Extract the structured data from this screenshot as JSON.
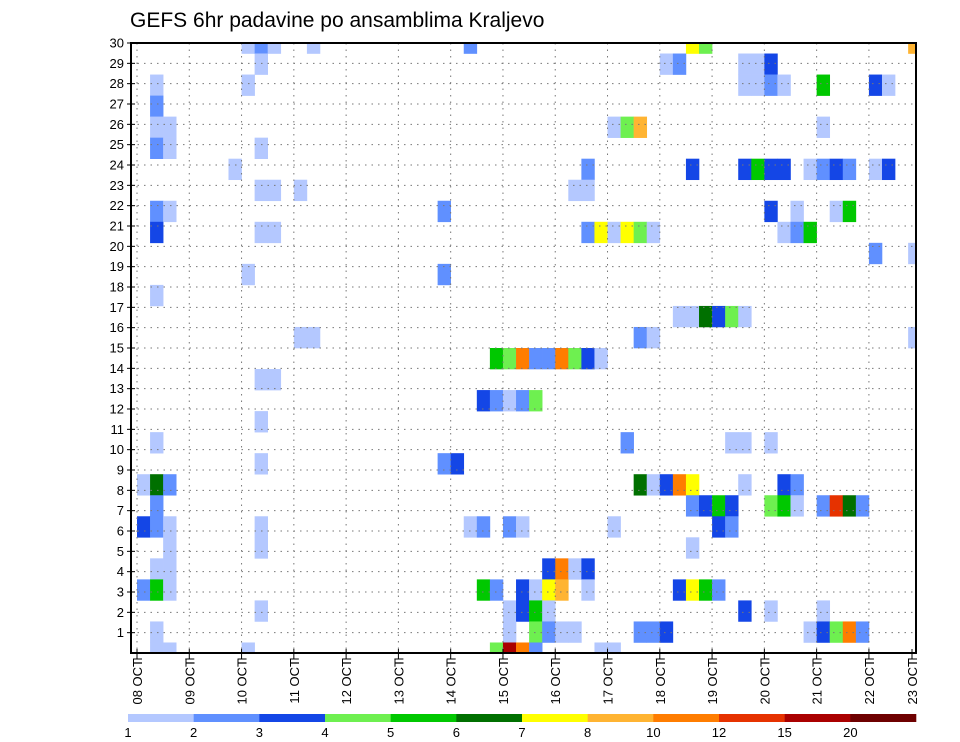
{
  "chart_data": {
    "type": "heatmap",
    "title": "GEFS 6hr padavine po ansamblima Kraljevo",
    "xlabel": "",
    "ylabel": "",
    "x_tick_labels": [
      "08 OCT",
      "09 OCT",
      "10 OCT",
      "11 OCT",
      "12 OCT",
      "13 OCT",
      "14 OCT",
      "15 OCT",
      "16 OCT",
      "17 OCT",
      "18 OCT",
      "19 OCT",
      "20 OCT",
      "21 OCT",
      "22 OCT",
      "23 OCT"
    ],
    "y_tick_labels": [
      "1",
      "2",
      "3",
      "4",
      "5",
      "6",
      "7",
      "8",
      "9",
      "10",
      "11",
      "12",
      "13",
      "14",
      "15",
      "16",
      "17",
      "18",
      "19",
      "20",
      "21",
      "22",
      "23",
      "24",
      "25",
      "26",
      "27",
      "28",
      "29",
      "30"
    ],
    "x_steps_per_day": 4,
    "n_time_steps": 60,
    "n_members": 30,
    "grid": true,
    "legend": {
      "placement": "bottom",
      "levels": [
        {
          "label": "1",
          "color": "#b4c8ff"
        },
        {
          "label": "2",
          "color": "#6090ff"
        },
        {
          "label": "3",
          "color": "#1446e6"
        },
        {
          "label": "4",
          "color": "#6ef050"
        },
        {
          "label": "5",
          "color": "#00c800"
        },
        {
          "label": "6",
          "color": "#007000"
        },
        {
          "label": "7",
          "color": "#ffff00"
        },
        {
          "label": "8",
          "color": "#ffb432"
        },
        {
          "label": "10",
          "color": "#ff7d00"
        },
        {
          "label": "12",
          "color": "#e63200"
        },
        {
          "label": "15",
          "color": "#aa0000"
        },
        {
          "label": "20",
          "color": "#6e0000"
        }
      ]
    },
    "cells_format": "[time_step, member_index, precip_class_lower_bound]",
    "cells": [
      [
        8,
        29,
        1
      ],
      [
        9,
        29,
        2
      ],
      [
        10,
        29,
        1
      ],
      [
        13,
        29,
        1
      ],
      [
        25,
        29,
        2
      ],
      [
        42,
        29,
        7
      ],
      [
        43,
        29,
        4
      ],
      [
        59,
        29,
        8
      ],
      [
        9,
        28,
        1
      ],
      [
        40,
        28,
        1
      ],
      [
        41,
        28,
        2
      ],
      [
        46,
        28,
        1
      ],
      [
        47,
        28,
        1
      ],
      [
        48,
        28,
        3
      ],
      [
        1,
        27,
        1
      ],
      [
        8,
        27,
        1
      ],
      [
        46,
        27,
        1
      ],
      [
        47,
        27,
        1
      ],
      [
        48,
        27,
        2
      ],
      [
        49,
        27,
        1
      ],
      [
        52,
        27,
        5
      ],
      [
        56,
        27,
        3
      ],
      [
        57,
        27,
        1
      ],
      [
        1,
        26,
        2
      ],
      [
        1,
        25,
        1
      ],
      [
        2,
        25,
        1
      ],
      [
        36,
        25,
        1
      ],
      [
        37,
        25,
        4
      ],
      [
        38,
        25,
        8
      ],
      [
        52,
        25,
        1
      ],
      [
        1,
        24,
        2
      ],
      [
        2,
        24,
        1
      ],
      [
        9,
        24,
        1
      ],
      [
        7,
        23,
        1
      ],
      [
        34,
        23,
        2
      ],
      [
        42,
        23,
        3
      ],
      [
        46,
        23,
        3
      ],
      [
        47,
        23,
        5
      ],
      [
        48,
        23,
        3
      ],
      [
        49,
        23,
        3
      ],
      [
        51,
        23,
        1
      ],
      [
        52,
        23,
        2
      ],
      [
        53,
        23,
        3
      ],
      [
        54,
        23,
        2
      ],
      [
        56,
        23,
        1
      ],
      [
        57,
        23,
        3
      ],
      [
        9,
        22,
        1
      ],
      [
        10,
        22,
        1
      ],
      [
        12,
        22,
        1
      ],
      [
        33,
        22,
        1
      ],
      [
        34,
        22,
        1
      ],
      [
        1,
        21,
        2
      ],
      [
        2,
        21,
        1
      ],
      [
        23,
        21,
        2
      ],
      [
        48,
        21,
        3
      ],
      [
        50,
        21,
        1
      ],
      [
        53,
        21,
        1
      ],
      [
        54,
        21,
        5
      ],
      [
        1,
        20,
        3
      ],
      [
        9,
        20,
        1
      ],
      [
        10,
        20,
        1
      ],
      [
        34,
        20,
        2
      ],
      [
        35,
        20,
        7
      ],
      [
        36,
        20,
        1
      ],
      [
        37,
        20,
        7
      ],
      [
        38,
        20,
        4
      ],
      [
        39,
        20,
        1
      ],
      [
        49,
        20,
        1
      ],
      [
        50,
        20,
        2
      ],
      [
        51,
        20,
        5
      ],
      [
        56,
        19,
        2
      ],
      [
        59,
        19,
        1
      ],
      [
        8,
        18,
        1
      ],
      [
        23,
        18,
        2
      ],
      [
        1,
        17,
        1
      ],
      [
        41,
        16,
        1
      ],
      [
        42,
        16,
        1
      ],
      [
        43,
        16,
        6
      ],
      [
        44,
        16,
        3
      ],
      [
        45,
        16,
        4
      ],
      [
        46,
        16,
        1
      ],
      [
        12,
        15,
        1
      ],
      [
        13,
        15,
        1
      ],
      [
        38,
        15,
        2
      ],
      [
        39,
        15,
        1
      ],
      [
        59,
        15,
        1
      ],
      [
        27,
        14,
        5
      ],
      [
        28,
        14,
        4
      ],
      [
        29,
        14,
        10
      ],
      [
        30,
        14,
        2
      ],
      [
        31,
        14,
        2
      ],
      [
        32,
        14,
        10
      ],
      [
        33,
        14,
        4
      ],
      [
        34,
        14,
        3
      ],
      [
        35,
        14,
        1
      ],
      [
        9,
        13,
        1
      ],
      [
        10,
        13,
        1
      ],
      [
        26,
        12,
        3
      ],
      [
        27,
        12,
        2
      ],
      [
        28,
        12,
        1
      ],
      [
        29,
        12,
        2
      ],
      [
        30,
        12,
        4
      ],
      [
        9,
        11,
        1
      ],
      [
        1,
        10,
        1
      ],
      [
        37,
        10,
        2
      ],
      [
        45,
        10,
        1
      ],
      [
        46,
        10,
        1
      ],
      [
        48,
        10,
        1
      ],
      [
        9,
        9,
        1
      ],
      [
        23,
        9,
        2
      ],
      [
        24,
        9,
        3
      ],
      [
        0,
        8,
        1
      ],
      [
        1,
        8,
        6
      ],
      [
        2,
        8,
        2
      ],
      [
        38,
        8,
        6
      ],
      [
        39,
        8,
        1
      ],
      [
        40,
        8,
        3
      ],
      [
        41,
        8,
        10
      ],
      [
        42,
        8,
        7
      ],
      [
        46,
        8,
        1
      ],
      [
        49,
        8,
        3
      ],
      [
        50,
        8,
        2
      ],
      [
        1,
        7,
        2
      ],
      [
        42,
        7,
        2
      ],
      [
        43,
        7,
        3
      ],
      [
        44,
        7,
        5
      ],
      [
        45,
        7,
        3
      ],
      [
        48,
        7,
        4
      ],
      [
        49,
        7,
        5
      ],
      [
        50,
        7,
        1
      ],
      [
        52,
        7,
        2
      ],
      [
        53,
        7,
        12
      ],
      [
        54,
        7,
        6
      ],
      [
        55,
        7,
        2
      ],
      [
        0,
        6,
        3
      ],
      [
        1,
        6,
        2
      ],
      [
        2,
        6,
        1
      ],
      [
        9,
        6,
        1
      ],
      [
        25,
        6,
        1
      ],
      [
        26,
        6,
        2
      ],
      [
        28,
        6,
        2
      ],
      [
        29,
        6,
        1
      ],
      [
        36,
        6,
        1
      ],
      [
        44,
        6,
        3
      ],
      [
        45,
        6,
        2
      ],
      [
        2,
        5,
        1
      ],
      [
        9,
        5,
        1
      ],
      [
        42,
        5,
        1
      ],
      [
        1,
        4,
        1
      ],
      [
        2,
        4,
        1
      ],
      [
        31,
        4,
        3
      ],
      [
        32,
        4,
        10
      ],
      [
        33,
        4,
        1
      ],
      [
        34,
        4,
        3
      ],
      [
        0,
        3,
        2
      ],
      [
        1,
        3,
        5
      ],
      [
        2,
        3,
        1
      ],
      [
        26,
        3,
        5
      ],
      [
        27,
        3,
        2
      ],
      [
        29,
        3,
        3
      ],
      [
        30,
        3,
        1
      ],
      [
        31,
        3,
        7
      ],
      [
        32,
        3,
        8
      ],
      [
        34,
        3,
        1
      ],
      [
        41,
        3,
        3
      ],
      [
        42,
        3,
        7
      ],
      [
        43,
        3,
        5
      ],
      [
        44,
        3,
        2
      ],
      [
        9,
        2,
        1
      ],
      [
        28,
        2,
        1
      ],
      [
        29,
        2,
        3
      ],
      [
        30,
        2,
        5
      ],
      [
        31,
        2,
        1
      ],
      [
        46,
        2,
        3
      ],
      [
        48,
        2,
        1
      ],
      [
        52,
        2,
        1
      ],
      [
        1,
        1,
        1
      ],
      [
        28,
        1,
        1
      ],
      [
        30,
        1,
        4
      ],
      [
        31,
        1,
        2
      ],
      [
        32,
        1,
        1
      ],
      [
        33,
        1,
        1
      ],
      [
        38,
        1,
        2
      ],
      [
        39,
        1,
        2
      ],
      [
        40,
        1,
        3
      ],
      [
        51,
        1,
        1
      ],
      [
        52,
        1,
        3
      ],
      [
        53,
        1,
        4
      ],
      [
        54,
        1,
        10
      ],
      [
        55,
        1,
        2
      ],
      [
        1,
        0,
        1
      ],
      [
        2,
        0,
        1
      ],
      [
        8,
        0,
        1
      ],
      [
        27,
        0,
        4
      ],
      [
        28,
        0,
        15
      ],
      [
        29,
        0,
        10
      ],
      [
        30,
        0,
        2
      ],
      [
        35,
        0,
        1
      ],
      [
        36,
        0,
        1
      ]
    ]
  }
}
